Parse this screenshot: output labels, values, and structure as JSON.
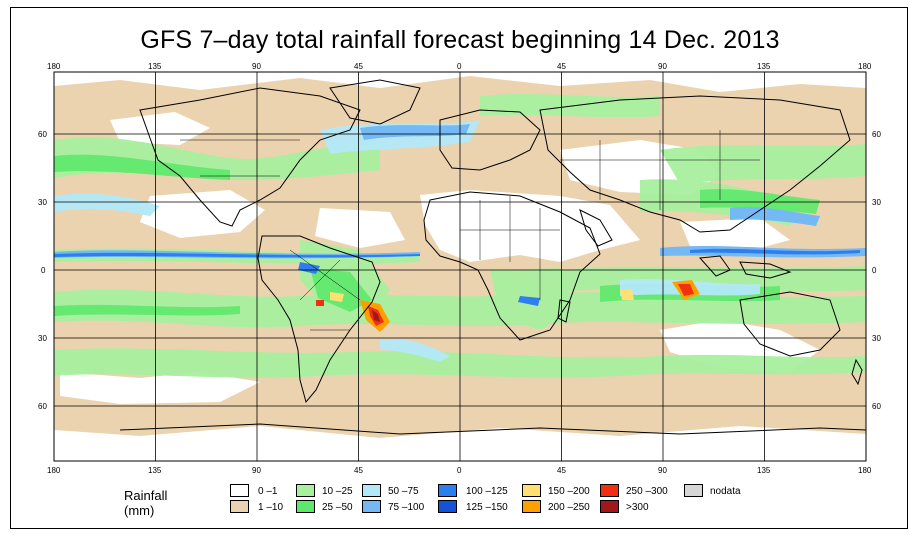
{
  "title": "GFS 7–day total rainfall forecast beginning 14 Dec. 2013",
  "top_lon_ticks": [
    "180",
    "135",
    "90",
    "45",
    "0",
    "45",
    "90",
    "135",
    "180"
  ],
  "bottom_lon_ticks": [
    "180",
    "135",
    "90",
    "45",
    "0",
    "45",
    "90",
    "135",
    "180"
  ],
  "left_lat_ticks": [
    "60",
    "30",
    "0",
    "30",
    "60"
  ],
  "right_lat_ticks": [
    "60",
    "30",
    "0",
    "30",
    "60"
  ],
  "legend": {
    "title": "Rainfall (mm)",
    "entries": [
      {
        "label": "0 –1",
        "color": "#ffffff"
      },
      {
        "label": "1 –10",
        "color": "#ecd3b0"
      },
      {
        "label": "10 –25",
        "color": "#a8f0a0"
      },
      {
        "label": "25 –50",
        "color": "#5ee86a"
      },
      {
        "label": "50 –75",
        "color": "#b2e8f8"
      },
      {
        "label": "75 –100",
        "color": "#74b8f4"
      },
      {
        "label": "100 –125",
        "color": "#2e7ef0"
      },
      {
        "label": "125 –150",
        "color": "#1452d8"
      },
      {
        "label": "150 –200",
        "color": "#ffe070"
      },
      {
        "label": "200 –250",
        "color": "#ffa000"
      },
      {
        "label": "250 –300",
        "color": "#f03010"
      },
      {
        "label": ">300",
        "color": "#a01818"
      },
      {
        "label": "nodata",
        "color": "#d6d6d6"
      }
    ]
  },
  "colors": {
    "land_outline": "#000000",
    "grid": "#000000"
  }
}
